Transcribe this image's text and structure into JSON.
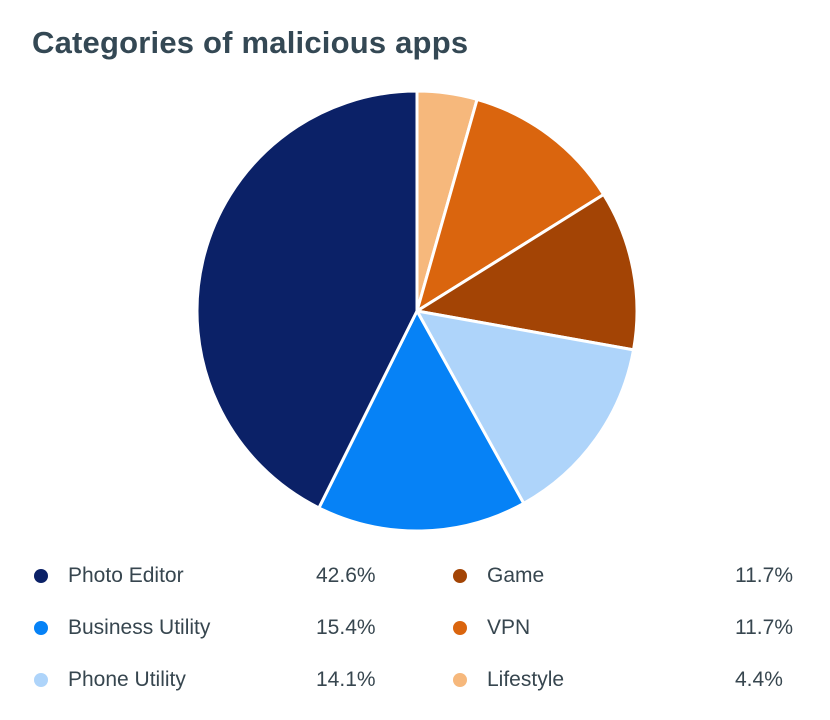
{
  "page": {
    "background": "#ffffff"
  },
  "chart_data": {
    "type": "pie",
    "title": "Categories of malicious apps",
    "unit": "%",
    "start_angle_deg": 0,
    "direction": "clockwise",
    "legend_position": "bottom-two-columns",
    "slice_draw_order_from_top": [
      5,
      4,
      3,
      2,
      1,
      0
    ],
    "separator_color": "#ffffff",
    "items": [
      {
        "label": "Photo Editor",
        "value": 42.6,
        "display": "42.6%",
        "color": "#0b2167"
      },
      {
        "label": "Business Utility",
        "value": 15.4,
        "display": "15.4%",
        "color": "#0682f6"
      },
      {
        "label": "Phone Utility",
        "value": 14.1,
        "display": "14.1%",
        "color": "#aed4fa"
      },
      {
        "label": "Game",
        "value": 11.7,
        "display": "11.7%",
        "color": "#a34405"
      },
      {
        "label": "VPN",
        "value": 11.7,
        "display": "11.7%",
        "color": "#da650e"
      },
      {
        "label": "Lifestyle",
        "value": 4.4,
        "display": "4.4%",
        "color": "#f6b87c"
      }
    ],
    "text_colors": {
      "title": "#344854",
      "legend": "#37464f"
    }
  }
}
